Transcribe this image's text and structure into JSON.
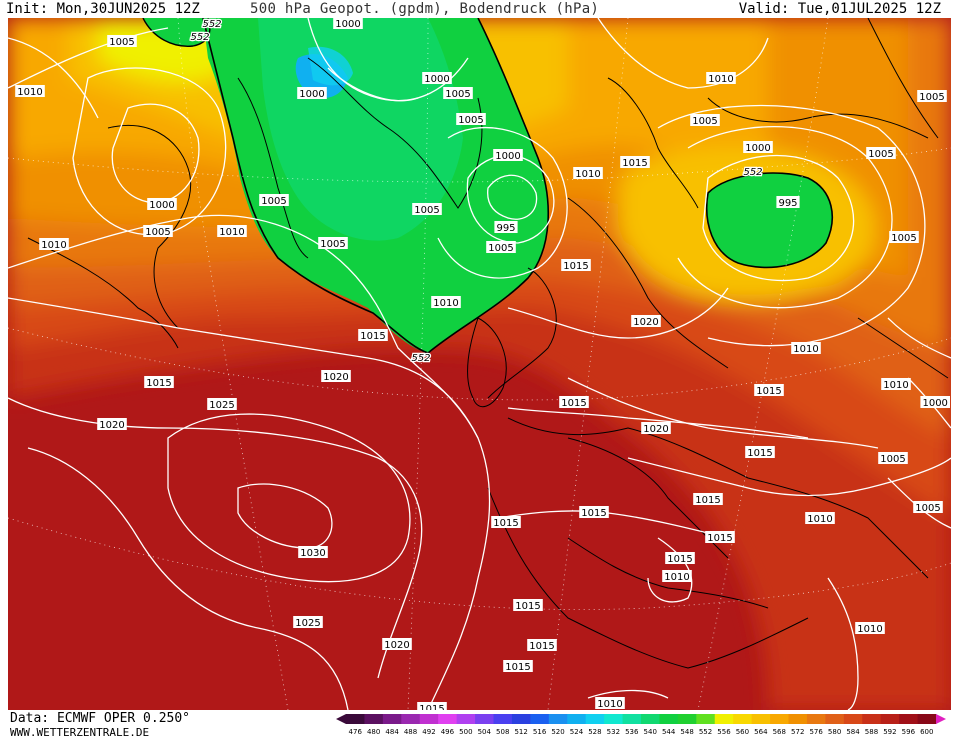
{
  "header": {
    "init": "Init: Mon,30JUN2025 12Z",
    "title": "500 hPa Geopot. (gpdm), Bodendruck (hPa)",
    "valid": "Valid: Tue,01JUL2025 12Z"
  },
  "footer": {
    "data_source": "Data: ECMWF OPER 0.250°",
    "website": "WWW.WETTERZENTRALE.DE"
  },
  "colorbar": {
    "values": [
      "476",
      "480",
      "484",
      "488",
      "492",
      "496",
      "500",
      "504",
      "508",
      "512",
      "516",
      "520",
      "524",
      "528",
      "532",
      "536",
      "540",
      "544",
      "548",
      "552",
      "556",
      "560",
      "564",
      "568",
      "572",
      "576",
      "580",
      "584",
      "588",
      "592",
      "596",
      "600"
    ],
    "colors": [
      "#3a0a3a",
      "#5a1060",
      "#7a1a8a",
      "#9a28b0",
      "#c030d0",
      "#e040f0",
      "#b040f0",
      "#7a40f0",
      "#4a40f0",
      "#2a40e0",
      "#1a60f0",
      "#1a90f0",
      "#10b0f0",
      "#10d0f0",
      "#10e8d0",
      "#10e0a0",
      "#10d870",
      "#10d040",
      "#20d030",
      "#60e020",
      "#f0f000",
      "#f8d800",
      "#f8c000",
      "#f8a800",
      "#f09000",
      "#e87810",
      "#e06018",
      "#d84818",
      "#c83018",
      "#b82018",
      "#a01018",
      "#880818"
    ]
  },
  "geopotential_labels": [
    {
      "text": "552"
    },
    {
      "text": "552"
    },
    {
      "text": "552"
    },
    {
      "text": "552"
    },
    {
      "text": "552"
    }
  ],
  "pressure_labels": [
    {
      "text": "1005"
    },
    {
      "text": "1010"
    },
    {
      "text": "1000"
    },
    {
      "text": "1000"
    },
    {
      "text": "1000"
    },
    {
      "text": "1005"
    },
    {
      "text": "1005"
    },
    {
      "text": "1005"
    },
    {
      "text": "1000"
    },
    {
      "text": "995"
    },
    {
      "text": "1005"
    },
    {
      "text": "1010"
    },
    {
      "text": "1000"
    },
    {
      "text": "1005"
    },
    {
      "text": "1010"
    },
    {
      "text": "1005"
    },
    {
      "text": "1005"
    },
    {
      "text": "1010"
    },
    {
      "text": "1015"
    },
    {
      "text": "1010"
    },
    {
      "text": "1015"
    },
    {
      "text": "1005"
    },
    {
      "text": "1010"
    },
    {
      "text": "1000"
    },
    {
      "text": "995"
    },
    {
      "text": "1005"
    },
    {
      "text": "1005"
    },
    {
      "text": "1005"
    },
    {
      "text": "1020"
    },
    {
      "text": "1010"
    },
    {
      "text": "1015"
    },
    {
      "text": "1015"
    },
    {
      "text": "1020"
    },
    {
      "text": "1015"
    },
    {
      "text": "1025"
    },
    {
      "text": "1020"
    },
    {
      "text": "1015"
    },
    {
      "text": "1020"
    },
    {
      "text": "1010"
    },
    {
      "text": "1005"
    },
    {
      "text": "1005"
    },
    {
      "text": "1015"
    },
    {
      "text": "1030"
    },
    {
      "text": "1015"
    },
    {
      "text": "1015"
    },
    {
      "text": "1015"
    },
    {
      "text": "1015"
    },
    {
      "text": "1010"
    },
    {
      "text": "1015"
    },
    {
      "text": "1015"
    },
    {
      "text": "1025"
    },
    {
      "text": "1020"
    },
    {
      "text": "1015"
    },
    {
      "text": "1015"
    },
    {
      "text": "1010"
    },
    {
      "text": "1015"
    },
    {
      "text": "1010"
    },
    {
      "text": "1010"
    },
    {
      "text": "1000"
    }
  ]
}
